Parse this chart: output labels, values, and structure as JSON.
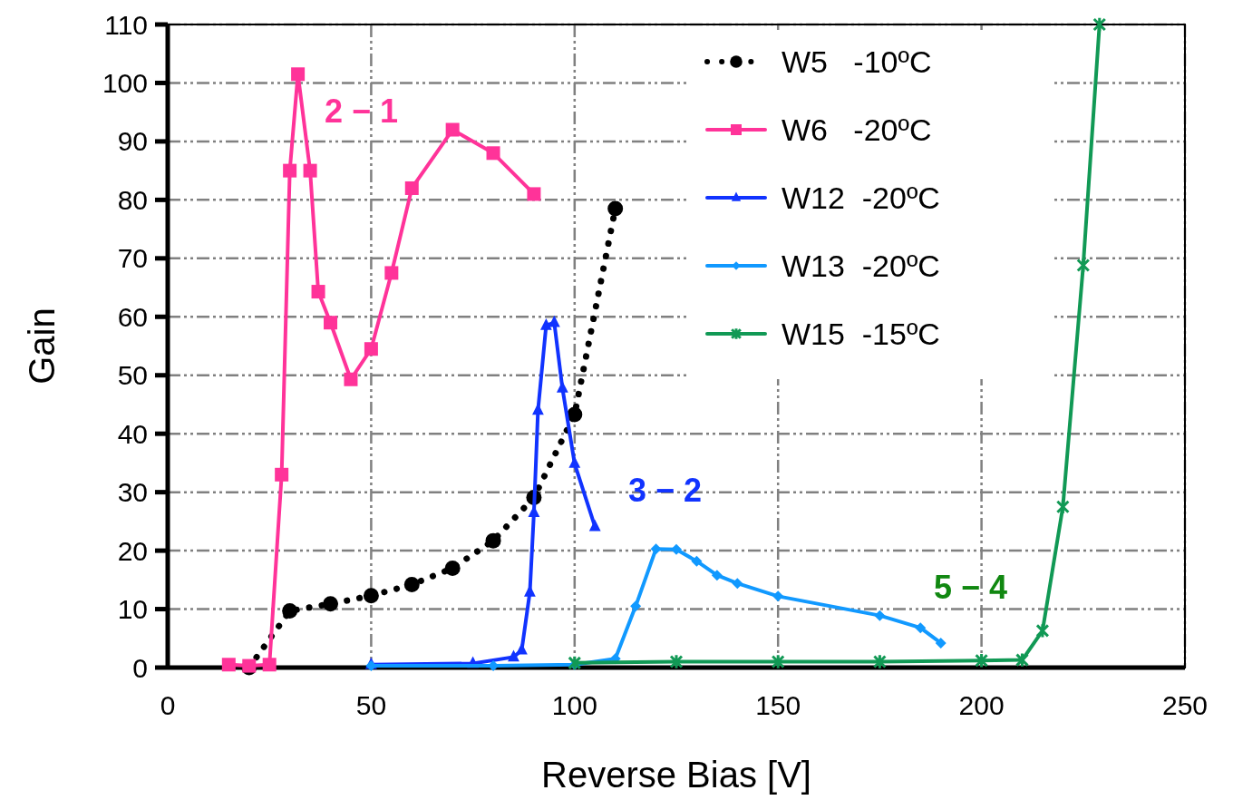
{
  "chart_data": {
    "type": "line",
    "xlabel": "Reverse Bias [V]",
    "ylabel": "Gain",
    "xlim": [
      0,
      250
    ],
    "ylim": [
      0,
      110
    ],
    "xticks": [
      0,
      50,
      100,
      150,
      200,
      250
    ],
    "yticks": [
      0,
      10,
      20,
      30,
      40,
      50,
      60,
      70,
      80,
      90,
      100,
      110
    ],
    "grid": true,
    "legend": "top right",
    "series": [
      {
        "name": "W5   -10ºC",
        "color": "#000000",
        "marker": "circle",
        "line_style": "dotted",
        "x": [
          20,
          30,
          40,
          50,
          60,
          70,
          80,
          90,
          100,
          110
        ],
        "values": [
          0,
          9.7,
          10.9,
          12.3,
          14.2,
          17,
          21.7,
          29.1,
          43.3,
          78.5
        ]
      },
      {
        "name": "W6   -20ºC",
        "color": "#ff3399",
        "marker": "square",
        "line_style": "solid",
        "x": [
          15,
          20,
          25,
          28,
          30,
          32,
          35,
          37,
          40,
          45,
          50,
          55,
          60,
          70,
          80,
          90
        ],
        "values": [
          0.5,
          0.3,
          0.5,
          33,
          85,
          101.5,
          85,
          64.3,
          59,
          49.3,
          54.5,
          67.5,
          82,
          92,
          88,
          81
        ]
      },
      {
        "name": "W12  -20ºC",
        "color": "#1133ff",
        "marker": "triangle",
        "line_style": "solid",
        "x": [
          50,
          75,
          85,
          87,
          89,
          90,
          91,
          93,
          95,
          97,
          100,
          105
        ],
        "values": [
          0.5,
          0.7,
          1.8,
          3,
          12.9,
          26.5,
          44,
          58.5,
          59,
          47.8,
          34.9,
          24.1
        ]
      },
      {
        "name": "W13  -20ºC",
        "color": "#1199ff",
        "marker": "diamond",
        "line_style": "solid",
        "x": [
          50,
          80,
          100,
          110,
          115,
          120,
          125,
          130,
          135,
          140,
          150,
          175,
          185,
          190
        ],
        "values": [
          0.3,
          0.3,
          0.5,
          1.5,
          10.5,
          20.3,
          20.2,
          18.2,
          15.8,
          14.4,
          12.2,
          8.9,
          6.8,
          4.2
        ]
      },
      {
        "name": "W15  -15ºC",
        "color": "#119955",
        "marker": "cross",
        "line_style": "solid",
        "x": [
          100,
          125,
          150,
          175,
          200,
          210,
          215,
          220,
          225,
          229
        ],
        "values": [
          0.8,
          1,
          1,
          1,
          1.2,
          1.3,
          6.3,
          27.5,
          68.8,
          110
        ]
      }
    ],
    "annotations": [
      "2 − 1",
      "3 − 2",
      "5 − 4"
    ]
  }
}
